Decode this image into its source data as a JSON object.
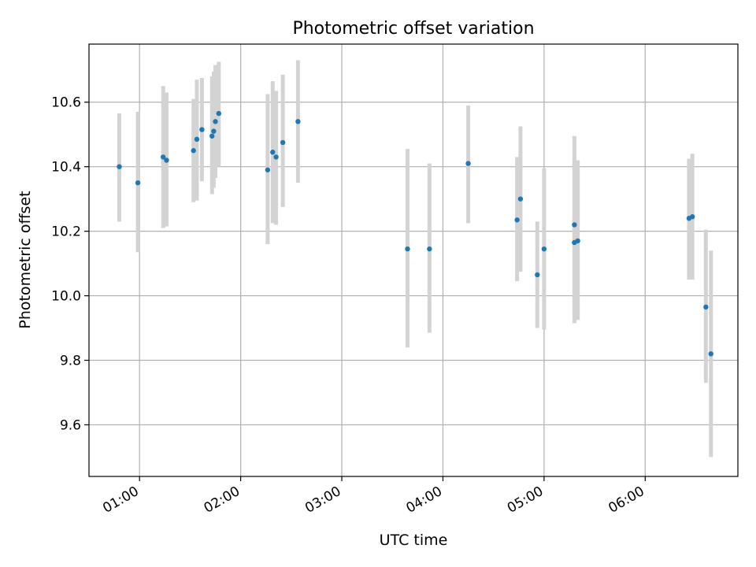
{
  "chart_data": {
    "type": "scatter",
    "title": "Photometric offset variation",
    "xlabel": "UTC time",
    "ylabel": "Photometric offset",
    "grid": true,
    "x_ticks": [
      "01:00",
      "02:00",
      "03:00",
      "04:00",
      "05:00",
      "06:00"
    ],
    "y_ticks": [
      "9.6",
      "9.8",
      "10.0",
      "10.2",
      "10.4",
      "10.6"
    ],
    "xlim": [
      "00:30",
      "06:55"
    ],
    "ylim": [
      9.44,
      10.78
    ],
    "colors": {
      "point": "#1f77b4",
      "errorbar": "#d3d3d3",
      "grid": "#b0b0b0"
    },
    "points": [
      {
        "x": "00:48",
        "y": 10.4,
        "yerr_low": 10.23,
        "yerr_high": 10.565
      },
      {
        "x": "00:59",
        "y": 10.35,
        "yerr_low": 10.135,
        "yerr_high": 10.57
      },
      {
        "x": "01:14",
        "y": 10.43,
        "yerr_low": 10.21,
        "yerr_high": 10.65
      },
      {
        "x": "01:16",
        "y": 10.42,
        "yerr_low": 10.215,
        "yerr_high": 10.63
      },
      {
        "x": "01:32",
        "y": 10.45,
        "yerr_low": 10.29,
        "yerr_high": 10.61
      },
      {
        "x": "01:34",
        "y": 10.485,
        "yerr_low": 10.295,
        "yerr_high": 10.67
      },
      {
        "x": "01:37",
        "y": 10.515,
        "yerr_low": 10.355,
        "yerr_high": 10.675
      },
      {
        "x": "01:43",
        "y": 10.495,
        "yerr_low": 10.315,
        "yerr_high": 10.68
      },
      {
        "x": "01:44",
        "y": 10.51,
        "yerr_low": 10.335,
        "yerr_high": 10.695
      },
      {
        "x": "01:45",
        "y": 10.54,
        "yerr_low": 10.365,
        "yerr_high": 10.715
      },
      {
        "x": "01:47",
        "y": 10.565,
        "yerr_low": 10.4,
        "yerr_high": 10.725
      },
      {
        "x": "02:16",
        "y": 10.39,
        "yerr_low": 10.16,
        "yerr_high": 10.625
      },
      {
        "x": "02:19",
        "y": 10.445,
        "yerr_low": 10.225,
        "yerr_high": 10.665
      },
      {
        "x": "02:21",
        "y": 10.43,
        "yerr_low": 10.22,
        "yerr_high": 10.635
      },
      {
        "x": "02:25",
        "y": 10.475,
        "yerr_low": 10.275,
        "yerr_high": 10.685
      },
      {
        "x": "02:34",
        "y": 10.54,
        "yerr_low": 10.35,
        "yerr_high": 10.73
      },
      {
        "x": "03:39",
        "y": 10.145,
        "yerr_low": 9.84,
        "yerr_high": 10.455
      },
      {
        "x": "03:52",
        "y": 10.145,
        "yerr_low": 9.885,
        "yerr_high": 10.41
      },
      {
        "x": "04:15",
        "y": 10.41,
        "yerr_low": 10.225,
        "yerr_high": 10.59
      },
      {
        "x": "04:44",
        "y": 10.235,
        "yerr_low": 10.045,
        "yerr_high": 10.43
      },
      {
        "x": "04:46",
        "y": 10.3,
        "yerr_low": 10.075,
        "yerr_high": 10.525
      },
      {
        "x": "04:56",
        "y": 10.065,
        "yerr_low": 9.9,
        "yerr_high": 10.23
      },
      {
        "x": "05:00",
        "y": 10.145,
        "yerr_low": 9.895,
        "yerr_high": 10.395
      },
      {
        "x": "05:18",
        "y": 10.165,
        "yerr_low": 9.915,
        "yerr_high": 10.42
      },
      {
        "x": "05:18",
        "y": 10.22,
        "yerr_low": 9.945,
        "yerr_high": 10.495
      },
      {
        "x": "05:20",
        "y": 10.17,
        "yerr_low": 9.925,
        "yerr_high": 10.42
      },
      {
        "x": "06:26",
        "y": 10.24,
        "yerr_low": 10.05,
        "yerr_high": 10.425
      },
      {
        "x": "06:28",
        "y": 10.245,
        "yerr_low": 10.05,
        "yerr_high": 10.44
      },
      {
        "x": "06:36",
        "y": 9.965,
        "yerr_low": 9.73,
        "yerr_high": 10.205
      },
      {
        "x": "06:39",
        "y": 9.82,
        "yerr_low": 9.5,
        "yerr_high": 10.14
      }
    ]
  }
}
